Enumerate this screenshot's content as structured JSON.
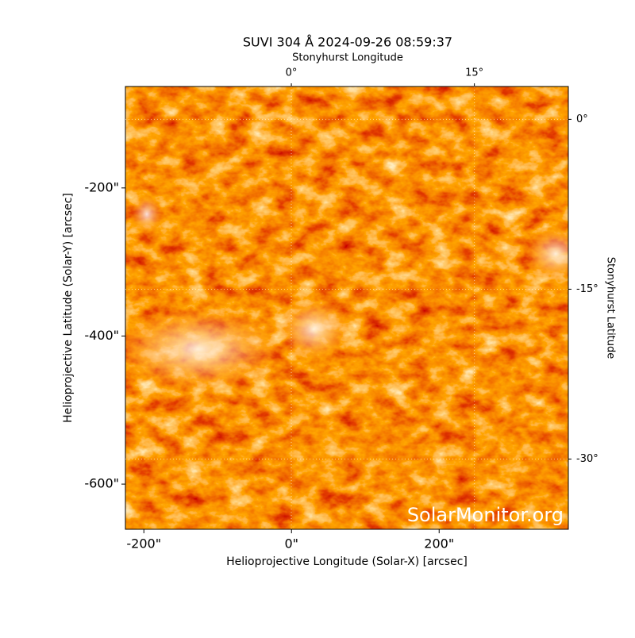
{
  "chart_data": {
    "type": "image",
    "title": "SUVI 304 Å 2024-09-26 08:59:37",
    "xlabel": "Helioprojective Longitude (Solar-X) [arcsec]",
    "ylabel": "Helioprojective Latitude (Solar-Y) [arcsec]",
    "x2label": "Stonyhurst Longitude",
    "y2label": "Stonyhurst Latitude",
    "watermark": "SolarMonitor.org",
    "xlim": [
      -225,
      375
    ],
    "ylim": [
      -661,
      -63
    ],
    "xticks": [
      {
        "value": -200,
        "label": "-200\""
      },
      {
        "value": 0,
        "label": "0\""
      },
      {
        "value": 200,
        "label": "200\""
      }
    ],
    "yticks": [
      {
        "value": -200,
        "label": "-200\""
      },
      {
        "value": -400,
        "label": "-400\""
      },
      {
        "value": -600,
        "label": "-600\""
      }
    ],
    "x2lim": [
      -13.6,
      22.7
    ],
    "y2lim": [
      2.9,
      -36.2
    ],
    "x2ticks": [
      {
        "value": 0,
        "label": "0°"
      },
      {
        "value": 15,
        "label": "15°"
      }
    ],
    "y2ticks": [
      {
        "value": 0,
        "label": "0°"
      },
      {
        "value": -15,
        "label": "-15°"
      },
      {
        "value": -30,
        "label": "-30°"
      }
    ],
    "grid": true
  }
}
